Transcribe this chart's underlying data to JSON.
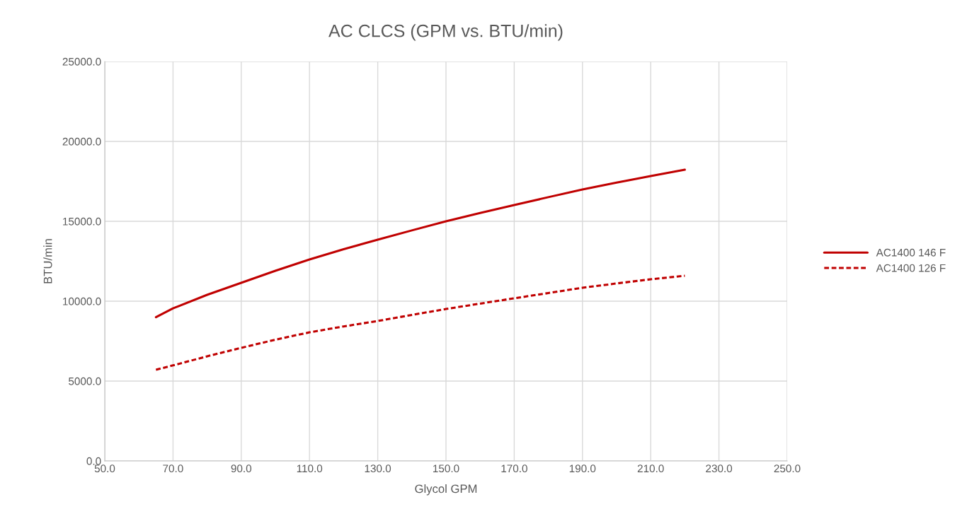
{
  "chart_data": {
    "type": "line",
    "title": "AC CLCS (GPM vs. BTU/min)",
    "xlabel": "Glycol GPM",
    "ylabel": "BTU/min",
    "x": [
      65,
      70,
      80,
      90,
      100,
      110,
      120,
      130,
      140,
      150,
      160,
      170,
      180,
      190,
      200,
      210,
      220
    ],
    "series": [
      {
        "name": "AC1400 146 F",
        "color": "#c00000",
        "line_style": "solid",
        "values": [
          9000,
          9550,
          10400,
          11150,
          11900,
          12610,
          13250,
          13850,
          14430,
          15000,
          15520,
          16020,
          16510,
          16990,
          17420,
          17830,
          18230
        ]
      },
      {
        "name": "AC1400 126 F",
        "color": "#c00000",
        "line_style": "dashed",
        "values": [
          5710,
          5980,
          6550,
          7080,
          7590,
          8050,
          8420,
          8760,
          9140,
          9510,
          9850,
          10180,
          10510,
          10840,
          11110,
          11370,
          11590
        ]
      }
    ],
    "xlim": [
      50,
      250
    ],
    "xticks": [
      {
        "value": 50,
        "label": "50.0"
      },
      {
        "value": 70,
        "label": "70.0"
      },
      {
        "value": 90,
        "label": "90.0"
      },
      {
        "value": 110,
        "label": "110.0"
      },
      {
        "value": 130,
        "label": "130.0"
      },
      {
        "value": 150,
        "label": "150.0"
      },
      {
        "value": 170,
        "label": "170.0"
      },
      {
        "value": 190,
        "label": "190.0"
      },
      {
        "value": 210,
        "label": "210.0"
      },
      {
        "value": 230,
        "label": "230.0"
      },
      {
        "value": 250,
        "label": "250.0"
      }
    ],
    "ylim": [
      0,
      25000
    ],
    "yticks": [
      {
        "value": 0,
        "label": "0.0"
      },
      {
        "value": 5000,
        "label": "5000.0"
      },
      {
        "value": 10000,
        "label": "10000.0"
      },
      {
        "value": 15000,
        "label": "15000.0"
      },
      {
        "value": 20000,
        "label": "20000.0"
      },
      {
        "value": 25000,
        "label": "25000.0"
      }
    ],
    "grid": true,
    "legend": "right",
    "marker": "none"
  }
}
